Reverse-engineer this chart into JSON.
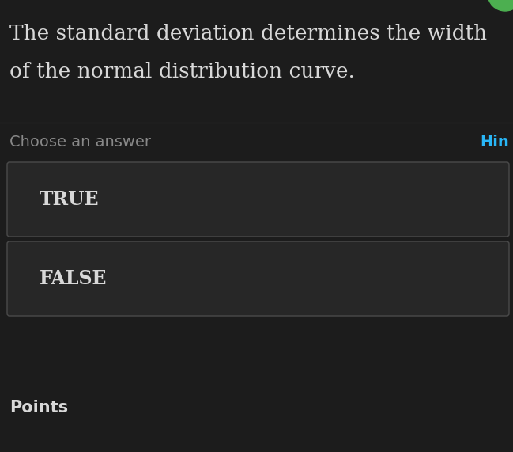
{
  "background_color": "#1c1c1c",
  "question_text_line1": "The standard deviation determines the width",
  "question_text_line2": "of the normal distribution curve.",
  "question_font_size": 19,
  "question_text_color": "#d8d8d8",
  "divider_color": "#444444",
  "choose_label": "Choose an answer",
  "choose_color": "#888888",
  "choose_font_size": 14,
  "hint_label": "Hin",
  "hint_color": "#29b6f6",
  "hint_font_size": 14,
  "button_bg_color": "#272727",
  "button_border_color": "#4a4a4a",
  "button_text_color": "#d8d8d8",
  "button_font_size": 17,
  "true_label": "TRUE",
  "false_label": "FALSE",
  "points_label": "Points",
  "points_font_size": 15,
  "points_color": "#d8d8d8",
  "green_dot_color": "#4caf50",
  "fig_width": 6.49,
  "fig_height": 5.71,
  "dpi": 100
}
